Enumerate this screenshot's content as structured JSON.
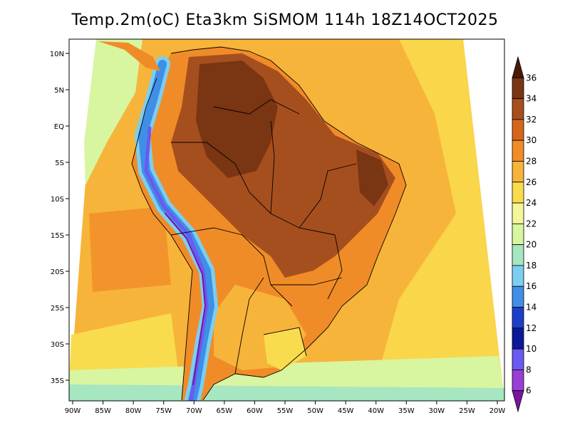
{
  "title": "Temp.2m(oC) Eta3km SiSMOM 114h 18Z14OCT2025",
  "lat_labels": [
    "10N",
    "5N",
    "EQ",
    "5S",
    "10S",
    "15S",
    "20S",
    "25S",
    "30S",
    "35S"
  ],
  "lon_labels": [
    "90W",
    "85W",
    "80W",
    "75W",
    "70W",
    "65W",
    "60W",
    "55W",
    "50W",
    "45W",
    "40W",
    "35W",
    "30W",
    "25W",
    "20W"
  ],
  "colorbar": {
    "labels": [
      "36",
      "34",
      "32",
      "30",
      "28",
      "26",
      "24",
      "22",
      "20",
      "18",
      "16",
      "14",
      "12",
      "10",
      "8",
      "6"
    ],
    "colors": [
      "#4a1a06",
      "#7a3512",
      "#a64f1e",
      "#d4661c",
      "#f08c28",
      "#f7b43a",
      "#f9dc4e",
      "#f5f59a",
      "#d8f5a0",
      "#a6e6c0",
      "#7ccef0",
      "#3f8fe6",
      "#1c3fc8",
      "#0a1a9a",
      "#6a5af0",
      "#9a3ed6",
      "#7a14a0"
    ]
  },
  "map_colors": {
    "ocean_warm": "#f7b43a",
    "ocean_cool": "#f9dc4e",
    "ocean_cold": "#d8f5a0",
    "land_hot": "#a64f1e",
    "land_very_hot": "#7a3512",
    "land_warm": "#d4661c",
    "andes_cold": "#3f8fe6",
    "andes_frozen": "#7a14a0"
  }
}
